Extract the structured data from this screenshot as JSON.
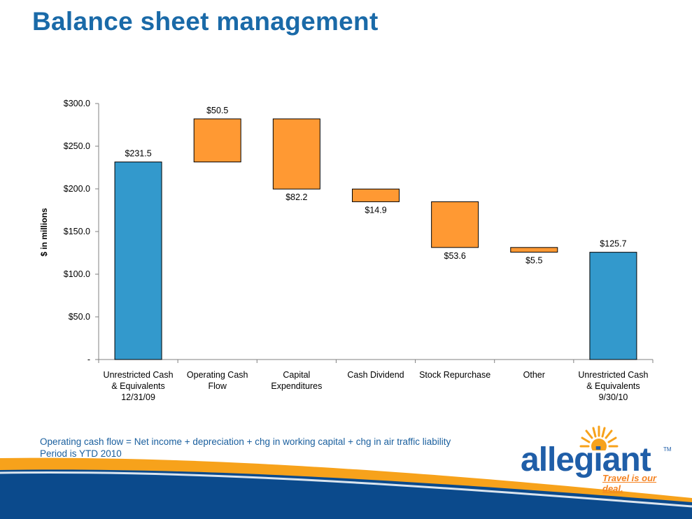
{
  "title": "Balance sheet management",
  "footnotes": [
    "Operating cash flow = Net income + depreciation + chg in working capital + chg in air traffic liability",
    "Period is YTD 2010"
  ],
  "logo": {
    "wordmark": "allegiant",
    "trademark": "TM",
    "tagline": "Travel is our deal."
  },
  "colors": {
    "title": "#1a6aa8",
    "total_bar": "#3399cc",
    "delta_bar": "#ff9933",
    "bar_stroke": "#000000",
    "footnote": "#1a5f9e",
    "band_blue": "#0b4a8c",
    "band_orange": "#f7a21b"
  },
  "chart_data": {
    "type": "bar",
    "subtype": "waterfall",
    "ylabel": "$ in millions",
    "ylim": [
      0,
      300
    ],
    "yticks": [
      {
        "value": 0,
        "label": "-"
      },
      {
        "value": 50,
        "label": "$50.0"
      },
      {
        "value": 100,
        "label": "$100.0"
      },
      {
        "value": 150,
        "label": "$150.0"
      },
      {
        "value": 200,
        "label": "$200.0"
      },
      {
        "value": 250,
        "label": "$250.0"
      },
      {
        "value": 300,
        "label": "$300.0"
      }
    ],
    "grid": false,
    "categories": [
      [
        "Unrestricted Cash",
        "& Equivalents",
        "12/31/09"
      ],
      [
        "Operating Cash",
        "Flow"
      ],
      [
        "Capital",
        "Expenditures"
      ],
      [
        "Cash Dividend"
      ],
      [
        "Stock Repurchase"
      ],
      [
        "Other"
      ],
      [
        "Unrestricted Cash",
        "& Equivalents",
        "9/30/10"
      ]
    ],
    "bars": [
      {
        "kind": "total",
        "start": 0,
        "end": 231.5,
        "label": "$231.5",
        "label_pos": "above"
      },
      {
        "kind": "increase",
        "start": 231.5,
        "end": 282.0,
        "label": "$50.5",
        "label_pos": "above"
      },
      {
        "kind": "decrease",
        "start": 282.0,
        "end": 199.8,
        "label": "$82.2",
        "label_pos": "below"
      },
      {
        "kind": "decrease",
        "start": 199.8,
        "end": 184.9,
        "label": "$14.9",
        "label_pos": "below"
      },
      {
        "kind": "decrease",
        "start": 184.9,
        "end": 131.3,
        "label": "$53.6",
        "label_pos": "below"
      },
      {
        "kind": "decrease",
        "start": 131.3,
        "end": 125.8,
        "label": "$5.5",
        "label_pos": "below"
      },
      {
        "kind": "total",
        "start": 0,
        "end": 125.7,
        "label": "$125.7",
        "label_pos": "above"
      }
    ]
  }
}
